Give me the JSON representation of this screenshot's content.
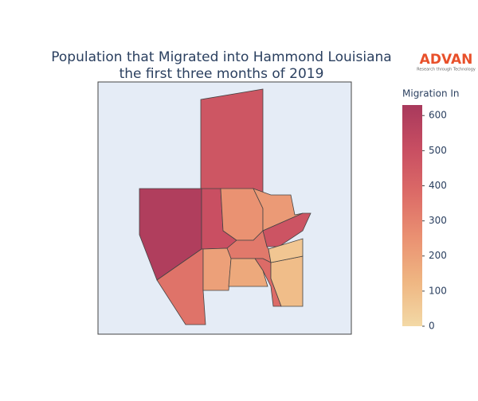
{
  "chart_data": {
    "type": "choropleth",
    "title": [
      "Population that Migrated into Hammond Louisiana",
      "the first three months of 2019"
    ],
    "logo": {
      "name": "ADVAN",
      "tagline": "Research through Technology"
    },
    "values": [
      470,
      600,
      500,
      350,
      250,
      220,
      480,
      330,
      380,
      200,
      170,
      100,
      70
    ],
    "colorbar": {
      "title": "Migration In",
      "range": [
        0,
        630
      ],
      "ticks": [
        0,
        100,
        200,
        300,
        400,
        500,
        600
      ],
      "colors": [
        "#f3d9a6",
        "#efb682",
        "#ea9172",
        "#dc6b67",
        "#c84e62",
        "#a8395c"
      ]
    }
  }
}
